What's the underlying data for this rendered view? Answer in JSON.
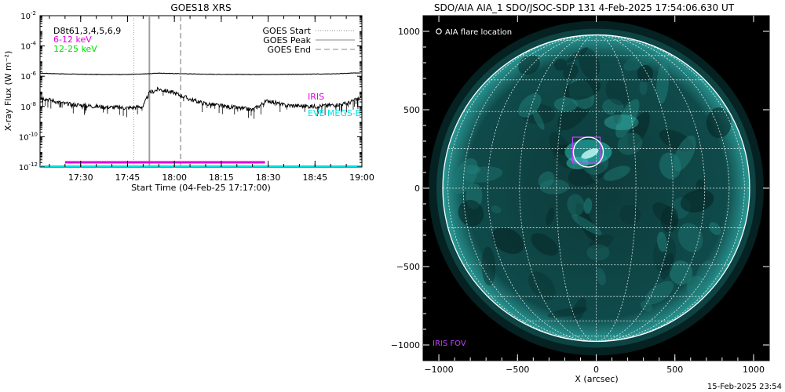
{
  "footer_timestamp": "15-Feb-2025 23:54",
  "colors": {
    "goes_long": "#000000",
    "goes_short": "#000000",
    "event_marker": "#a0a0a0",
    "magenta": "#e000e0",
    "green": "#00e000",
    "cyan": "#00e0e0",
    "limb": "#ffffff",
    "disk_base": "#0b2e2e",
    "disk_bright": "#2fe0d8",
    "flare_circle": "#ffffff",
    "iris_fov": "#c040ff"
  },
  "chart_data": [
    {
      "type": "line",
      "title": "GOES18 XRS",
      "xlabel": "Start Time (04-Feb-25 17:17:00)",
      "ylabel": "X-ray Flux (W m⁻²)",
      "y_scale": "log",
      "xlim": [
        "17:17",
        "19:00"
      ],
      "ylim": [
        1e-12,
        0.01
      ],
      "x_ticks": [
        "17:30",
        "17:45",
        "18:00",
        "18:15",
        "18:30",
        "18:45",
        "19:00"
      ],
      "y_ticks": [
        {
          "value": 0.01,
          "base": "10",
          "exp": "-2"
        },
        {
          "value": 0.0001,
          "base": "10",
          "exp": "-4"
        },
        {
          "value": 1e-06,
          "base": "10",
          "exp": "-6"
        },
        {
          "value": 1e-08,
          "base": "10",
          "exp": "-8"
        },
        {
          "value": 1e-10,
          "base": "10",
          "exp": "-10"
        },
        {
          "value": 1e-12,
          "base": "10",
          "exp": "-12"
        }
      ],
      "text_labels": [
        {
          "text": "D8t61,3,4,5,6,9",
          "color": "#000000"
        },
        {
          "text": "6-12 keV",
          "color": "#e000e0"
        },
        {
          "text": "12-25 keV",
          "color": "#00e000"
        }
      ],
      "legend": {
        "position": "top-right",
        "entries": [
          {
            "label": "GOES Start",
            "style": "dotted"
          },
          {
            "label": "GOES Peak",
            "style": "solid"
          },
          {
            "label": "GOES End",
            "style": "dashed"
          }
        ]
      },
      "right_labels": [
        {
          "text": "IRIS",
          "color": "#e000e0"
        },
        {
          "text": "EVE MEGS-B",
          "color": "#00e0e0"
        }
      ],
      "event_lines": {
        "start": "17:47",
        "peak": "17:52",
        "end": "18:02"
      },
      "series": [
        {
          "channel": "long",
          "x": [
            "17:17",
            "17:25",
            "17:35",
            "17:45",
            "17:50",
            "17:55",
            "18:00",
            "18:10",
            "18:20",
            "18:30",
            "18:40",
            "18:50",
            "19:00"
          ],
          "values": [
            1.6e-06,
            1.4e-06,
            1.3e-06,
            1.3e-06,
            1.4e-06,
            1.6e-06,
            1.5e-06,
            1.35e-06,
            1.3e-06,
            1.3e-06,
            1.35e-06,
            1.4e-06,
            1.7e-06
          ]
        },
        {
          "channel": "short",
          "x": [
            "17:17",
            "17:25",
            "17:35",
            "17:45",
            "17:50",
            "17:52",
            "17:55",
            "18:00",
            "18:05",
            "18:10",
            "18:20",
            "18:25",
            "18:30",
            "18:35",
            "18:45",
            "18:55",
            "19:00"
          ],
          "values": [
            4e-08,
            1.5e-08,
            1e-08,
            8e-09,
            1e-08,
            8e-08,
            1.4e-07,
            8e-08,
            3e-08,
            1.5e-08,
            8e-09,
            6e-09,
            2.5e-08,
            1.2e-08,
            1e-08,
            1.5e-08,
            4e-08
          ]
        }
      ],
      "coverage_bars": [
        {
          "label": "IRIS",
          "color": "#e000e0",
          "from": "17:25",
          "to": "18:29"
        },
        {
          "label": "EVE MEGS-B",
          "color": "#00e0e0",
          "from": "17:17",
          "to": "19:00"
        }
      ]
    },
    {
      "type": "heatmap",
      "title": "SDO/AIA AIA_1 SDO/JSOC-SDP 131  4-Feb-2025 17:54:06.630 UT",
      "xlabel": "X (arcsec)",
      "ylabel": "",
      "xlim": [
        -1100,
        1100
      ],
      "ylim": [
        -1100,
        1100
      ],
      "x_ticks": [
        "-1000",
        "-500",
        "0",
        "500",
        "1000"
      ],
      "y_ticks": [
        "1000",
        "500",
        "0",
        "-500",
        "-1000"
      ],
      "solar_radius_arcsec": 975,
      "grid": true,
      "grid_spacing_deg": 15,
      "legend_label": "AIA flare location",
      "flare_location": {
        "x": -50,
        "y": 230,
        "radius": 95
      },
      "iris_fov": {
        "label": "IRIS FOV",
        "x0": -150,
        "y0": 160,
        "x1": 25,
        "y1": 325
      }
    }
  ]
}
